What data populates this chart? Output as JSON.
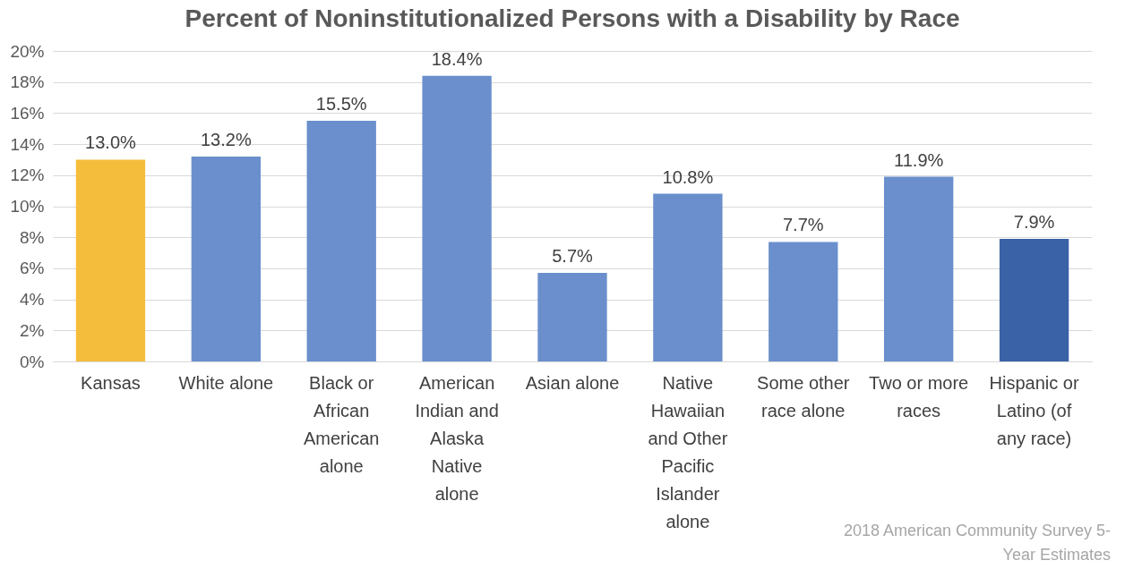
{
  "chart_data": {
    "type": "bar",
    "title": "Percent of Noninstitutionalized Persons with a Disability by Race",
    "categories": [
      "Kansas",
      "White alone",
      "Black or African American alone",
      "American Indian and Alaska Native alone",
      "Asian alone",
      "Native Hawaiian and Other Pacific Islander alone",
      "Some other race alone",
      "Two or more races",
      "Hispanic or Latino (of any race)"
    ],
    "values": [
      13.0,
      13.2,
      15.5,
      18.4,
      5.7,
      10.8,
      7.7,
      11.9,
      7.9
    ],
    "colors": [
      "#f5bd3c",
      "#6a8fcc",
      "#6a8fcc",
      "#6a8fcc",
      "#6a8fcc",
      "#6a8fcc",
      "#6a8fcc",
      "#6a8fcc",
      "#3a62a7"
    ],
    "value_labels": [
      "13.0%",
      "13.2%",
      "15.5%",
      "18.4%",
      "5.7%",
      "10.8%",
      "7.7%",
      "11.9%",
      "7.9%"
    ],
    "ylim": [
      0,
      20
    ],
    "yticks": [
      {
        "value": 0,
        "label": "0%"
      },
      {
        "value": 2,
        "label": "2%"
      },
      {
        "value": 4,
        "label": "4%"
      },
      {
        "value": 6,
        "label": "6%"
      },
      {
        "value": 8,
        "label": "8%"
      },
      {
        "value": 10,
        "label": "10%"
      },
      {
        "value": 12,
        "label": "12%"
      },
      {
        "value": 14,
        "label": "14%"
      },
      {
        "value": 16,
        "label": "16%"
      },
      {
        "value": 18,
        "label": "18%"
      },
      {
        "value": 20,
        "label": "20%"
      }
    ],
    "grid": "y",
    "annotations": [
      "2018 American Community Survey 5-Year Estimates"
    ]
  }
}
